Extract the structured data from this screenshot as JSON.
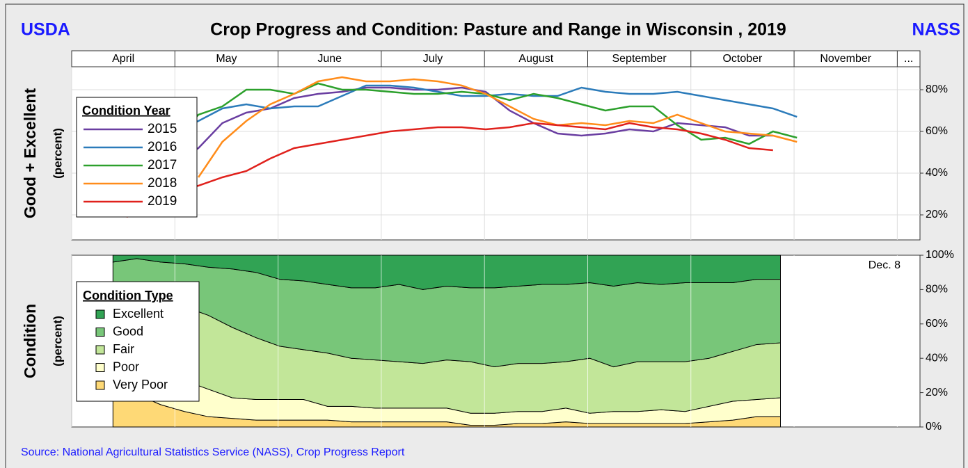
{
  "header": {
    "left": "USDA",
    "title": "Crop Progress and Condition: Pasture and Range in Wisconsin , 2019",
    "right": "NASS",
    "source": "Source: National Agricultural Statistics Service (NASS), Crop Progress Report"
  },
  "chart_data": [
    {
      "type": "line",
      "ylabel": "Good + Excellent",
      "ylabel_sub": "(percent)",
      "legend_title": "Condition Year",
      "xlim": [
        0,
        8.22
      ],
      "xticks": [
        {
          "value": 0,
          "label": "April"
        },
        {
          "value": 1,
          "label": "May"
        },
        {
          "value": 2,
          "label": "June"
        },
        {
          "value": 3,
          "label": "July"
        },
        {
          "value": 4,
          "label": "August"
        },
        {
          "value": 5,
          "label": "September"
        },
        {
          "value": 6,
          "label": "October"
        },
        {
          "value": 7,
          "label": "November"
        },
        {
          "value": 8,
          "label": "..."
        }
      ],
      "ylim": [
        8,
        91
      ],
      "yticks": [
        {
          "value": 20,
          "label": "20%"
        },
        {
          "value": 40,
          "label": "40%"
        },
        {
          "value": 60,
          "label": "60%"
        },
        {
          "value": 80,
          "label": "80%"
        }
      ],
      "grid": true,
      "x": [
        0.3,
        0.532,
        0.764,
        0.996,
        1.228,
        1.46,
        1.692,
        1.924,
        2.156,
        2.388,
        2.62,
        2.852,
        3.084,
        3.316,
        3.548,
        3.78,
        4.012,
        4.244,
        4.476,
        4.708,
        4.94,
        5.172,
        5.404,
        5.636,
        5.868,
        6.1,
        6.332,
        6.564,
        6.796,
        7.028
      ],
      "series": [
        {
          "name": "2015",
          "color": "#6a3ea1",
          "values": [
            23,
            29,
            38,
            45,
            52,
            64,
            69,
            71,
            76,
            78,
            79,
            81,
            81,
            80,
            80,
            81,
            79,
            70,
            64,
            59,
            58,
            59,
            61,
            60,
            64,
            63,
            62,
            58,
            58,
            null
          ]
        },
        {
          "name": "2016",
          "color": "#2b7bba",
          "values": [
            51,
            48,
            51,
            60,
            65,
            71,
            73,
            71,
            72,
            72,
            77,
            82,
            82,
            81,
            79,
            77,
            77,
            78,
            77,
            77,
            81,
            79,
            78,
            78,
            79,
            77,
            75,
            73,
            71,
            67
          ]
        },
        {
          "name": "2017",
          "color": "#2ca02c",
          "values": [
            null,
            45,
            48,
            56,
            68,
            72,
            80,
            80,
            78,
            83,
            80,
            80,
            79,
            78,
            78,
            79,
            78,
            75,
            78,
            76,
            73,
            70,
            72,
            72,
            63,
            56,
            57,
            54,
            60,
            57
          ]
        },
        {
          "name": "2018",
          "color": "#ff8c1a",
          "values": [
            null,
            null,
            null,
            null,
            38,
            55,
            65,
            73,
            78,
            84,
            86,
            84,
            84,
            85,
            84,
            82,
            78,
            72,
            66,
            63,
            64,
            63,
            65,
            64,
            68,
            64,
            60,
            59,
            58,
            55
          ]
        },
        {
          "name": "2019",
          "color": "#e0211c",
          "values": [
            null,
            19,
            24,
            31,
            34,
            38,
            41,
            47,
            52,
            54,
            56,
            58,
            60,
            61,
            62,
            62,
            61,
            62,
            64,
            63,
            62,
            61,
            64,
            62,
            61,
            59,
            56,
            52,
            51,
            null
          ]
        }
      ]
    },
    {
      "type": "stacked-area",
      "ylabel": "Condition",
      "ylabel_sub": "(percent)",
      "legend_title": "Condition Type",
      "annotation": "Dec.  8",
      "xlim": [
        0,
        8.22
      ],
      "xticks": [
        0,
        1,
        2,
        3,
        4,
        5,
        6,
        7,
        8
      ],
      "ylim": [
        0,
        100
      ],
      "yticks": [
        {
          "value": 0,
          "label": "0%"
        },
        {
          "value": 20,
          "label": "20%"
        },
        {
          "value": 40,
          "label": "40%"
        },
        {
          "value": 60,
          "label": "60%"
        },
        {
          "value": 80,
          "label": "80%"
        },
        {
          "value": 100,
          "label": "100%"
        }
      ],
      "x": [
        0.4,
        0.631,
        0.862,
        1.093,
        1.324,
        1.555,
        1.786,
        2.017,
        2.248,
        2.479,
        2.71,
        2.941,
        3.172,
        3.403,
        3.634,
        3.865,
        4.096,
        4.327,
        4.558,
        4.789,
        5.02,
        5.251,
        5.482,
        5.713,
        5.944,
        6.175,
        6.406,
        6.637,
        6.868
      ],
      "series": [
        {
          "name": "Very Poor",
          "color": "#fed976",
          "values": [
            15,
            19,
            13,
            9,
            6,
            5,
            4,
            4,
            4,
            4,
            3,
            3,
            3,
            3,
            3,
            1,
            1,
            2,
            2,
            3,
            2,
            2,
            2,
            2,
            2,
            3,
            4,
            6,
            6
          ]
        },
        {
          "name": "Poor",
          "color": "#ffffcc",
          "values": [
            16,
            14,
            15,
            18,
            16,
            12,
            12,
            12,
            12,
            8,
            9,
            8,
            8,
            8,
            8,
            7,
            7,
            7,
            7,
            8,
            6,
            7,
            7,
            8,
            7,
            9,
            11,
            10,
            11
          ]
        },
        {
          "name": "Fair",
          "color": "#c2e699",
          "values": [
            49,
            50,
            47,
            43,
            43,
            41,
            36,
            31,
            29,
            31,
            28,
            28,
            27,
            26,
            28,
            30,
            27,
            28,
            28,
            27,
            32,
            26,
            29,
            28,
            29,
            28,
            29,
            32,
            32
          ]
        },
        {
          "name": "Good",
          "color": "#78c679",
          "values": [
            16,
            15,
            21,
            25,
            28,
            34,
            38,
            39,
            40,
            40,
            41,
            42,
            45,
            43,
            43,
            43,
            46,
            45,
            46,
            45,
            44,
            47,
            46,
            45,
            46,
            44,
            40,
            38,
            37
          ]
        },
        {
          "name": "Excellent",
          "color": "#31a354",
          "values": [
            4,
            2,
            4,
            5,
            7,
            8,
            10,
            14,
            15,
            17,
            19,
            19,
            17,
            20,
            18,
            19,
            19,
            18,
            17,
            17,
            16,
            18,
            16,
            17,
            16,
            16,
            16,
            14,
            14
          ]
        }
      ]
    }
  ]
}
